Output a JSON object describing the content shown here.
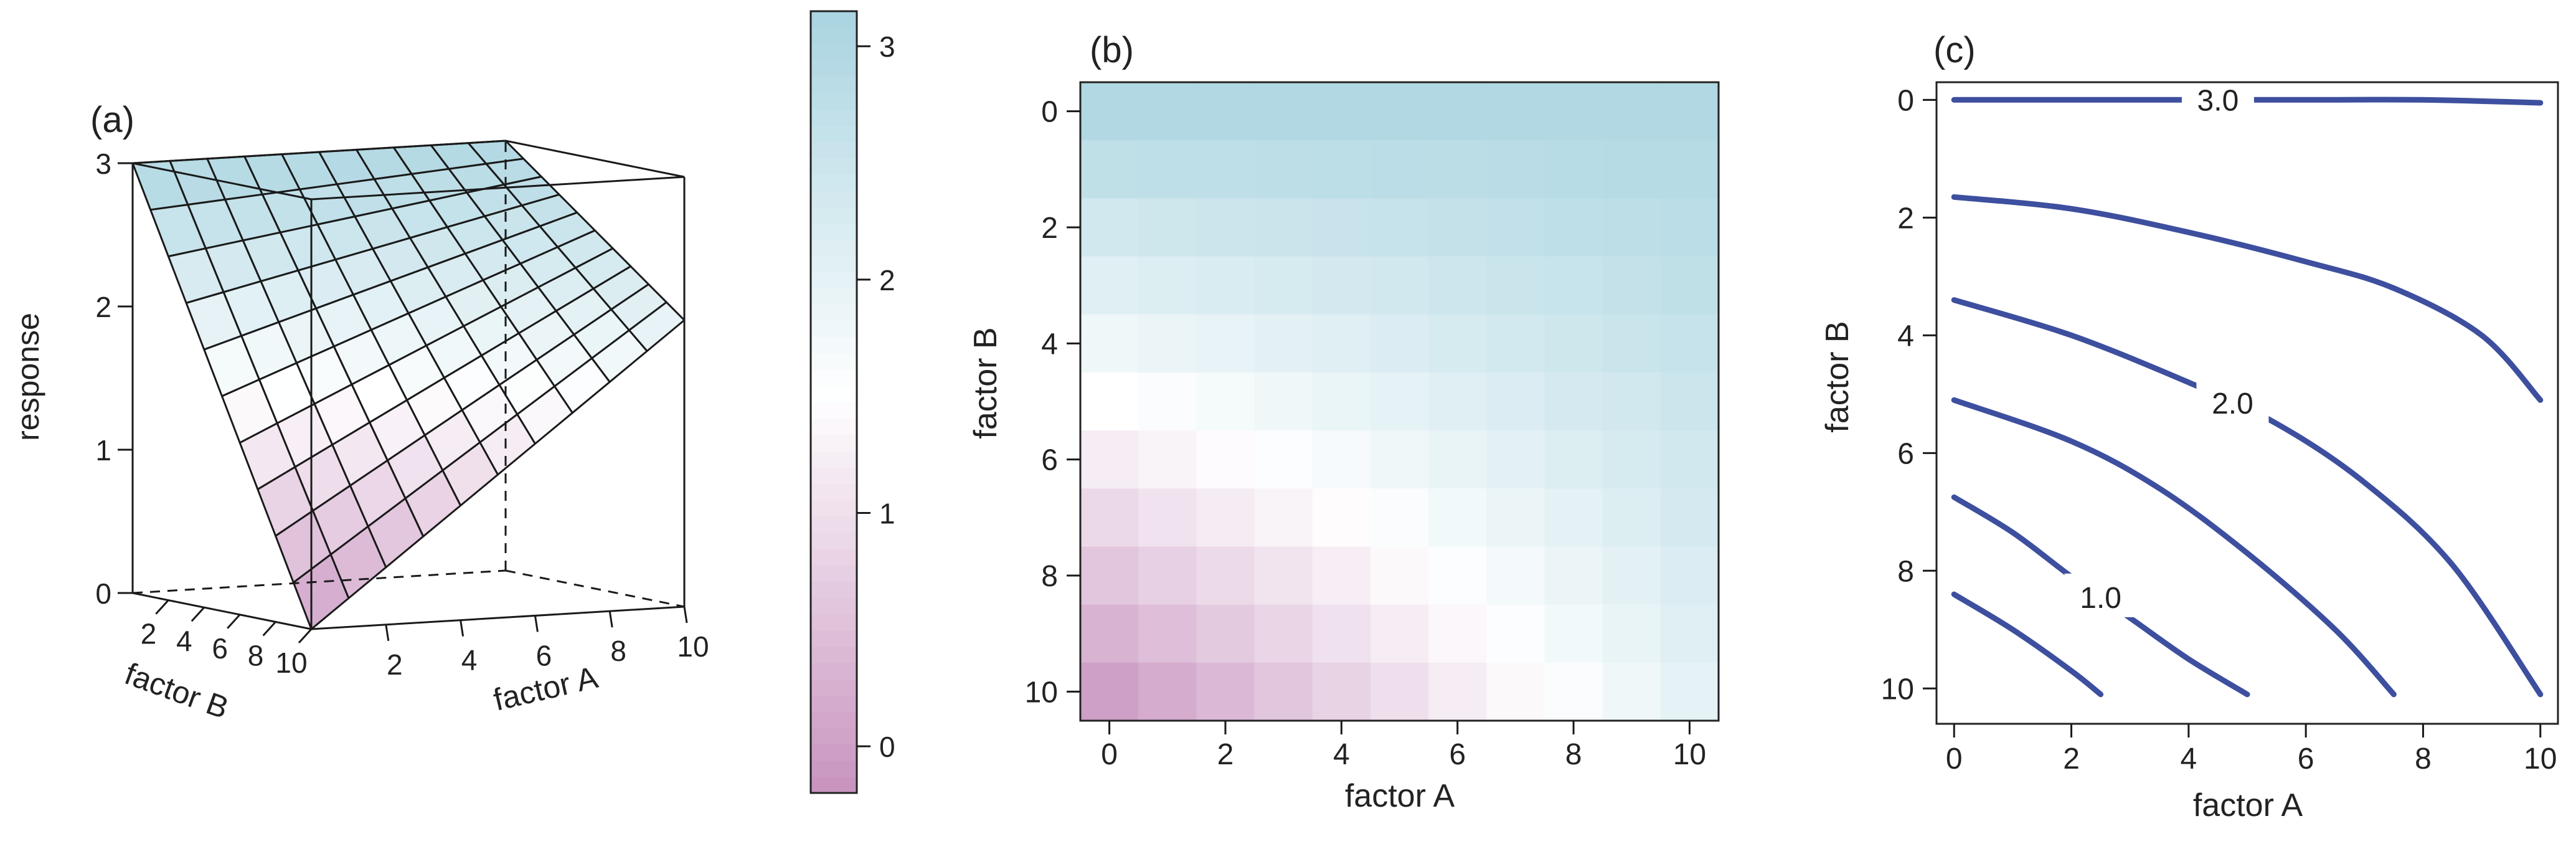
{
  "chart_data": [
    {
      "panel_label": "(a)",
      "type": "surface",
      "xlabel": "factor A",
      "ylabel": "factor B",
      "zlabel": "response",
      "x_ticks": [
        2,
        4,
        6,
        8,
        10
      ],
      "y_ticks": [
        2,
        4,
        6,
        8,
        10
      ],
      "z_ticks": [
        0,
        1,
        2,
        3
      ],
      "xlim": [
        0,
        10
      ],
      "ylim": [
        0,
        10
      ],
      "zlim": [
        0,
        3
      ],
      "grid_steps": 10,
      "surface_corners": {
        "a0_b0": 3.0,
        "a10_b0": 3.0,
        "a10_b10": 2.0,
        "a0_b10": 0.0
      },
      "colorbar": {
        "ticks": [
          0,
          1,
          2,
          3
        ],
        "range": [
          -0.2,
          3.15
        ]
      },
      "colors": {
        "low": "#c893bf",
        "mid": "#ffffff",
        "high": "#a9d4e0"
      }
    },
    {
      "panel_label": "(b)",
      "type": "heatmap",
      "xlabel": "factor A",
      "ylabel": "factor B",
      "x_ticks": [
        0,
        2,
        4,
        6,
        8,
        10
      ],
      "y_ticks": [
        0,
        2,
        4,
        6,
        8,
        10
      ],
      "xlim": [
        -0.5,
        10.5
      ],
      "ylim": [
        -0.5,
        10.5
      ],
      "y_inverted": true,
      "grid_steps": 10
    },
    {
      "panel_label": "(c)",
      "type": "contour",
      "xlabel": "factor A",
      "ylabel": "factor B",
      "x_ticks": [
        0,
        2,
        4,
        6,
        8,
        10
      ],
      "y_ticks": [
        0,
        2,
        4,
        6,
        8,
        10
      ],
      "xlim": [
        -0.3,
        10.3
      ],
      "ylim": [
        -0.3,
        10.6
      ],
      "y_inverted": true,
      "line_color": "#3d4f9e",
      "contours": [
        {
          "label": "3.0",
          "points": [
            [
              0,
              0
            ],
            [
              3,
              0
            ],
            [
              6,
              0
            ],
            [
              8,
              0
            ],
            [
              10,
              0.05
            ]
          ]
        },
        {
          "label": "",
          "points": [
            [
              0,
              1.65
            ],
            [
              2,
              1.85
            ],
            [
              4,
              2.25
            ],
            [
              6,
              2.75
            ],
            [
              7.5,
              3.2
            ],
            [
              9,
              4.0
            ],
            [
              10,
              5.1
            ]
          ]
        },
        {
          "label": "2.0",
          "points": [
            [
              0,
              3.4
            ],
            [
              2,
              4.0
            ],
            [
              4,
              4.8
            ],
            [
              5.5,
              5.5
            ],
            [
              7,
              6.5
            ],
            [
              8.5,
              7.9
            ],
            [
              10,
              10.1
            ]
          ]
        },
        {
          "label": "",
          "points": [
            [
              0,
              5.1
            ],
            [
              2,
              5.8
            ],
            [
              3.5,
              6.6
            ],
            [
              5,
              7.7
            ],
            [
              6.5,
              9.0
            ],
            [
              7.5,
              10.1
            ]
          ]
        },
        {
          "label": "1.0",
          "points": [
            [
              0,
              6.75
            ],
            [
              1,
              7.35
            ],
            [
              2,
              8.1
            ],
            [
              3,
              8.8
            ],
            [
              4,
              9.5
            ],
            [
              5,
              10.1
            ]
          ]
        },
        {
          "label": "",
          "points": [
            [
              0,
              8.4
            ],
            [
              1,
              9.0
            ],
            [
              2,
              9.7
            ],
            [
              2.5,
              10.1
            ]
          ]
        }
      ]
    }
  ]
}
